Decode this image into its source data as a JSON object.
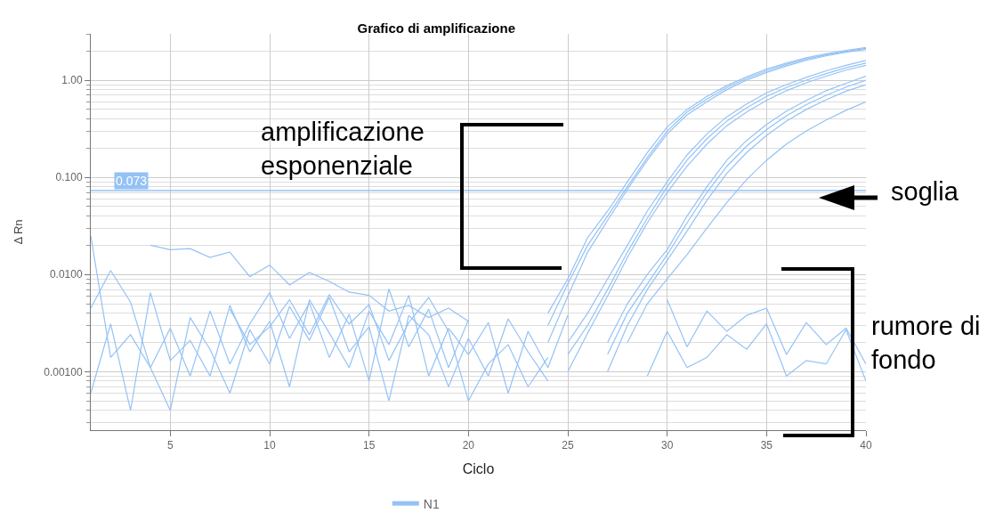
{
  "chart_data": {
    "type": "line",
    "title": "Grafico di amplificazione",
    "xlabel": "Ciclo",
    "ylabel": "Δ Rn",
    "log": "y",
    "grid": true,
    "legend": "bottom",
    "marker": "none",
    "line_style": "solid",
    "xlim": [
      1,
      40
    ],
    "xticks": [
      5,
      10,
      15,
      20,
      25,
      30,
      35,
      40
    ],
    "ylim": [
      0.00025,
      3
    ],
    "yticks": [
      {
        "value": 0.001,
        "label": "0.00100"
      },
      {
        "value": 0.01,
        "label": "0.0100"
      },
      {
        "value": 0.1,
        "label": "0.100"
      },
      {
        "value": 1,
        "label": "1.00"
      }
    ],
    "ref_lines": [
      {
        "axis": "y",
        "value": 0.073,
        "label": "0.073",
        "color": "#94c2f5"
      }
    ],
    "annotations": [
      "amplificazione\nesponenziale",
      "soglia",
      "rumore di\nfondo"
    ],
    "series": [
      {
        "name": "N1",
        "color": "#94c2f5",
        "x": [
          24,
          25,
          26,
          27,
          28,
          29,
          30,
          31,
          32,
          33,
          34,
          35,
          36,
          37,
          38,
          39,
          40
        ],
        "values": [
          0.004,
          0.009,
          0.024,
          0.045,
          0.09,
          0.18,
          0.33,
          0.5,
          0.68,
          0.88,
          1.08,
          1.3,
          1.5,
          1.7,
          1.87,
          2.03,
          2.17
        ]
      },
      {
        "color": "#94c2f5",
        "x": [
          24,
          25,
          26,
          27,
          28,
          29,
          30,
          31,
          32,
          33,
          34,
          35,
          36,
          37,
          38,
          39,
          40
        ],
        "values": [
          0.003,
          0.008,
          0.02,
          0.04,
          0.08,
          0.16,
          0.3,
          0.47,
          0.64,
          0.84,
          1.04,
          1.25,
          1.45,
          1.65,
          1.82,
          1.98,
          2.12
        ]
      },
      {
        "color": "#94c2f5",
        "x": [
          24,
          25,
          26,
          27,
          28,
          29,
          30,
          31,
          32,
          33,
          34,
          35,
          36,
          37,
          38,
          39,
          40
        ],
        "values": [
          0.002,
          0.006,
          0.017,
          0.036,
          0.075,
          0.15,
          0.28,
          0.44,
          0.6,
          0.8,
          1.0,
          1.2,
          1.4,
          1.6,
          1.78,
          1.94,
          2.08
        ]
      },
      {
        "color": "#94c2f5",
        "x": [
          25,
          26,
          27,
          28,
          29,
          30,
          31,
          32,
          33,
          34,
          35,
          36,
          37,
          38,
          39,
          40
        ],
        "values": [
          0.002,
          0.004,
          0.009,
          0.02,
          0.045,
          0.09,
          0.17,
          0.28,
          0.42,
          0.57,
          0.74,
          0.9,
          1.07,
          1.25,
          1.42,
          1.6
        ]
      },
      {
        "color": "#94c2f5",
        "x": [
          25,
          26,
          27,
          28,
          29,
          30,
          31,
          32,
          33,
          34,
          35,
          36,
          37,
          38,
          39,
          40
        ],
        "values": [
          0.0015,
          0.003,
          0.007,
          0.017,
          0.038,
          0.08,
          0.15,
          0.25,
          0.38,
          0.52,
          0.68,
          0.84,
          1.0,
          1.17,
          1.34,
          1.5
        ]
      },
      {
        "color": "#94c2f5",
        "x": [
          25,
          26,
          27,
          28,
          29,
          30,
          31,
          32,
          33,
          34,
          35,
          36,
          37,
          38,
          39,
          40
        ],
        "values": [
          0.001,
          0.0025,
          0.006,
          0.015,
          0.034,
          0.07,
          0.13,
          0.22,
          0.34,
          0.47,
          0.62,
          0.78,
          0.94,
          1.1,
          1.27,
          1.42
        ]
      },
      {
        "color": "#94c2f5",
        "x": [
          27,
          28,
          29,
          30,
          31,
          32,
          33,
          34,
          35,
          36,
          37,
          38,
          39,
          40
        ],
        "values": [
          0.002,
          0.005,
          0.01,
          0.018,
          0.04,
          0.08,
          0.15,
          0.24,
          0.35,
          0.48,
          0.62,
          0.78,
          0.93,
          1.1
        ]
      },
      {
        "color": "#94c2f5",
        "x": [
          27,
          28,
          29,
          30,
          31,
          32,
          33,
          34,
          35,
          36,
          37,
          38,
          39,
          40
        ],
        "values": [
          0.0015,
          0.004,
          0.008,
          0.016,
          0.034,
          0.07,
          0.13,
          0.21,
          0.31,
          0.43,
          0.56,
          0.7,
          0.85,
          1.0
        ]
      },
      {
        "color": "#94c2f5",
        "x": [
          27,
          28,
          29,
          30,
          31,
          32,
          33,
          34,
          35,
          36,
          37,
          38,
          39,
          40
        ],
        "values": [
          0.001,
          0.003,
          0.007,
          0.014,
          0.028,
          0.058,
          0.11,
          0.18,
          0.27,
          0.38,
          0.5,
          0.63,
          0.77,
          0.9
        ]
      },
      {
        "color": "#94c2f5",
        "x": [
          28,
          29,
          30,
          31,
          32,
          33,
          34,
          35,
          36,
          37,
          38,
          39,
          40
        ],
        "values": [
          0.002,
          0.005,
          0.009,
          0.016,
          0.03,
          0.055,
          0.095,
          0.15,
          0.22,
          0.3,
          0.39,
          0.49,
          0.6
        ]
      },
      {
        "color": "#94c2f5",
        "x": [
          1,
          2,
          3,
          4,
          5,
          6,
          7,
          8,
          9,
          10,
          11,
          12,
          13,
          14,
          15,
          16,
          17,
          18,
          19,
          20
        ],
        "values": [
          0.0045,
          0.011,
          0.0052,
          0.0011,
          0.0028,
          0.0009,
          0.0042,
          0.0012,
          0.0031,
          0.0065,
          0.0022,
          0.0051,
          0.0014,
          0.0039,
          0.0008,
          0.0071,
          0.0018,
          0.0044,
          0.0011,
          0.0034
        ]
      },
      {
        "color": "#94c2f5",
        "x": [
          1,
          2,
          3,
          4,
          5,
          6,
          7,
          8,
          9,
          10,
          11,
          12,
          13,
          14,
          15,
          16,
          17,
          18,
          19,
          20,
          21,
          22,
          23,
          24,
          25
        ],
        "values": [
          0.0006,
          0.0031,
          0.0004,
          0.0065,
          0.0013,
          0.0021,
          0.0009,
          0.0048,
          0.0016,
          0.0033,
          0.0007,
          0.0055,
          0.0025,
          0.0011,
          0.0042,
          0.0019,
          0.0061,
          0.0009,
          0.0028,
          0.0015,
          0.0032,
          0.0006,
          0.0026,
          0.0011,
          0.0038
        ]
      },
      {
        "color": "#94c2f5",
        "x": [
          1,
          2,
          3,
          4,
          5,
          6,
          7,
          8,
          9,
          10,
          11,
          12,
          13,
          14,
          15,
          16,
          17,
          18,
          19,
          20,
          21,
          22,
          23,
          24
        ],
        "values": [
          0.025,
          0.0014,
          0.0024,
          0.0011,
          0.0004,
          0.0036,
          0.0017,
          0.0006,
          0.0027,
          0.0012,
          0.0047,
          0.0021,
          0.0058,
          0.0016,
          0.0029,
          0.0005,
          0.0038,
          0.0024,
          0.0007,
          0.0022,
          0.0009,
          0.0035,
          0.0016,
          0.0008
        ]
      },
      {
        "color": "#94c2f5",
        "x": [
          4,
          5,
          6,
          7,
          8,
          9,
          10,
          11,
          12,
          13,
          14,
          15,
          16,
          17,
          18,
          19,
          20
        ],
        "values": [
          0.02,
          0.018,
          0.0185,
          0.015,
          0.017,
          0.0095,
          0.0125,
          0.0078,
          0.0105,
          0.0085,
          0.0066,
          0.0061,
          0.0042,
          0.0048,
          0.0036,
          0.0045,
          0.0033
        ]
      },
      {
        "color": "#94c2f5",
        "x": [
          8,
          9,
          10,
          11,
          12,
          13,
          14,
          15,
          16,
          17,
          18,
          19,
          20,
          21,
          22,
          23,
          24
        ],
        "values": [
          0.0044,
          0.0019,
          0.0029,
          0.0055,
          0.0024,
          0.0062,
          0.0031,
          0.0049,
          0.0013,
          0.0032,
          0.0058,
          0.0026,
          0.0005,
          0.0012,
          0.0019,
          0.0007,
          0.0014
        ]
      },
      {
        "color": "#94c2f5",
        "x": [
          30,
          31,
          32,
          33,
          34,
          35,
          36,
          37,
          38,
          39,
          40
        ],
        "values": [
          0.0055,
          0.0018,
          0.0042,
          0.0026,
          0.0038,
          0.0045,
          0.0015,
          0.0032,
          0.0019,
          0.0028,
          0.0012
        ]
      },
      {
        "color": "#94c2f5",
        "x": [
          29,
          30,
          31,
          32,
          33,
          34,
          35,
          36,
          37,
          38,
          39,
          40
        ],
        "values": [
          0.0009,
          0.0026,
          0.0011,
          0.0014,
          0.0024,
          0.0017,
          0.0031,
          0.0009,
          0.0013,
          0.0012,
          0.0027,
          0.0008
        ]
      }
    ]
  }
}
